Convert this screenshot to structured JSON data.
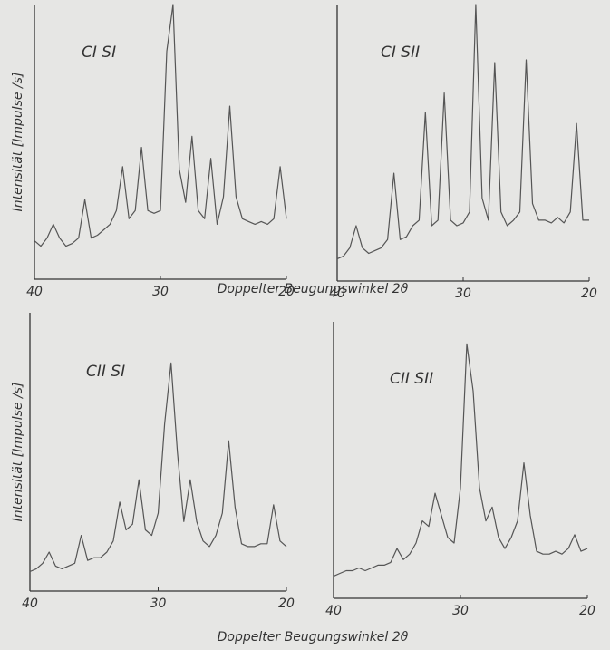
{
  "chart_data": [
    {
      "type": "line",
      "title": "CI SI",
      "x_label": "Doppelter Beugungswinkel 2ϑ",
      "y_label": "Intensität [Impulse /s]",
      "x": [
        40,
        39.5,
        39,
        38.5,
        38,
        37.5,
        37,
        36.5,
        36,
        35.5,
        35,
        34.5,
        34,
        33.5,
        33,
        32.5,
        32,
        31.5,
        31,
        30.5,
        30,
        29.5,
        29,
        28.5,
        28,
        27.5,
        27,
        26.5,
        26,
        25.5,
        25,
        24.5,
        24,
        23.5,
        23,
        22.5,
        22,
        21.5,
        21,
        20.5,
        20
      ],
      "values": [
        14,
        12,
        15,
        20,
        15,
        12,
        13,
        15,
        29,
        15,
        16,
        18,
        20,
        25,
        41,
        22,
        25,
        48,
        25,
        24,
        25,
        83,
        100,
        40,
        28,
        52,
        25,
        22,
        44,
        20,
        30,
        63,
        30,
        22,
        21,
        20,
        21,
        20,
        22,
        41,
        22
      ],
      "color": "#555555",
      "xlim": [
        40,
        20
      ],
      "ylim": [
        0,
        100
      ],
      "xticks": [
        40,
        30,
        20
      ]
    },
    {
      "type": "line",
      "title": "CI SII",
      "x": [
        40,
        39.5,
        39,
        38.5,
        38,
        37.5,
        37,
        36.5,
        36,
        35.5,
        35,
        34.5,
        34,
        33.5,
        33,
        32.5,
        32,
        31.5,
        31,
        30.5,
        30,
        29.5,
        29,
        28.5,
        28,
        27.5,
        27,
        26.5,
        26,
        25.5,
        25,
        24.5,
        24,
        23.5,
        23,
        22.5,
        22,
        21.5,
        21,
        20.5,
        20
      ],
      "values": [
        8,
        9,
        12,
        20,
        12,
        10,
        11,
        12,
        15,
        39,
        15,
        16,
        20,
        22,
        61,
        20,
        22,
        68,
        22,
        20,
        21,
        25,
        100,
        30,
        22,
        79,
        25,
        20,
        22,
        25,
        80,
        28,
        22,
        22,
        21,
        23,
        21,
        25,
        57,
        22,
        22
      ],
      "color": "#555555",
      "xlim": [
        40,
        20
      ],
      "ylim": [
        0,
        100
      ],
      "xticks": [
        40,
        30,
        20
      ]
    },
    {
      "type": "line",
      "title": "CII SI",
      "x_label": "Doppelter Beugungswinkel 2ϑ",
      "y_label": "Intensität [Impulse /s]",
      "x": [
        40,
        39.5,
        39,
        38.5,
        38,
        37.5,
        37,
        36.5,
        36,
        35.5,
        35,
        34.5,
        34,
        33.5,
        33,
        32.5,
        32,
        31.5,
        31,
        30.5,
        30,
        29.5,
        29,
        28.5,
        28,
        27.5,
        27,
        26.5,
        26,
        25.5,
        25,
        24.5,
        24,
        23.5,
        23,
        22.5,
        22,
        21.5,
        21,
        20.5,
        20
      ],
      "values": [
        7,
        8,
        10,
        14,
        9,
        8,
        9,
        10,
        20,
        11,
        12,
        12,
        14,
        18,
        32,
        22,
        24,
        40,
        22,
        20,
        28,
        60,
        82,
        50,
        25,
        40,
        25,
        18,
        16,
        20,
        28,
        54,
        30,
        17,
        16,
        16,
        17,
        17,
        31,
        18,
        16
      ],
      "color": "#555555",
      "xlim": [
        40,
        20
      ],
      "ylim": [
        0,
        100
      ],
      "xticks": [
        40,
        30,
        20
      ]
    },
    {
      "type": "line",
      "title": "CII SII",
      "x": [
        40,
        39.5,
        39,
        38.5,
        38,
        37.5,
        37,
        36.5,
        36,
        35.5,
        35,
        34.5,
        34,
        33.5,
        33,
        32.5,
        32,
        31.5,
        31,
        30.5,
        30,
        29.5,
        29,
        28.5,
        28,
        27.5,
        27,
        26.5,
        26,
        25.5,
        25,
        24.5,
        24,
        23.5,
        23,
        22.5,
        22,
        21.5,
        21,
        20.5,
        20
      ],
      "values": [
        8,
        9,
        10,
        10,
        11,
        10,
        11,
        12,
        12,
        13,
        18,
        14,
        16,
        20,
        28,
        26,
        38,
        30,
        22,
        20,
        40,
        92,
        75,
        40,
        28,
        33,
        22,
        18,
        22,
        28,
        49,
        30,
        17,
        16,
        16,
        17,
        16,
        18,
        23,
        17,
        18
      ],
      "color": "#555555",
      "xlim": [
        40,
        20
      ],
      "ylim": [
        0,
        100
      ],
      "xticks": [
        40,
        30,
        20
      ]
    }
  ]
}
